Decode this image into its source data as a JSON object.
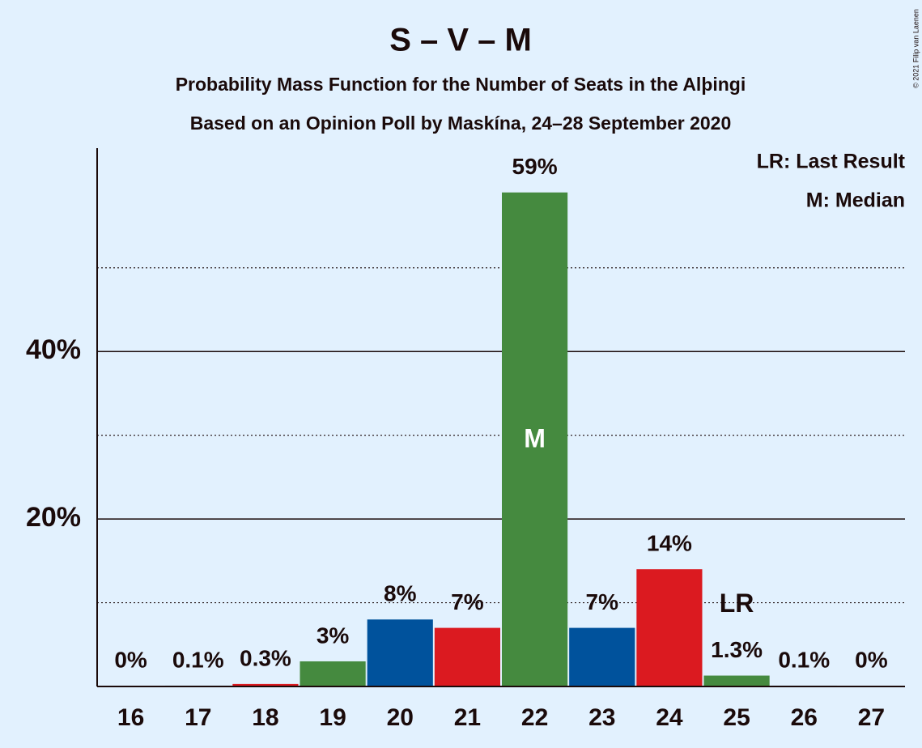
{
  "chart_data": {
    "type": "bar",
    "title": "S – V – M",
    "subtitle": "Probability Mass Function for the Number of Seats in the Alþingi",
    "subtitle2": "Based on an Opinion Poll by Maskína, 24–28 September 2020",
    "categories": [
      "16",
      "17",
      "18",
      "19",
      "20",
      "21",
      "22",
      "23",
      "24",
      "25",
      "26",
      "27"
    ],
    "values": [
      0,
      0.1,
      0.3,
      3,
      8,
      7,
      59,
      7,
      14,
      1.3,
      0.1,
      0
    ],
    "value_labels": [
      "0%",
      "0.1%",
      "0.3%",
      "3%",
      "8%",
      "7%",
      "59%",
      "7%",
      "14%",
      "1.3%",
      "0.1%",
      "0%"
    ],
    "colors": [
      "#458a3f",
      "#00529c",
      "#db1a20",
      "#458a3f",
      "#00529c",
      "#db1a20",
      "#458a3f",
      "#00529c",
      "#db1a20",
      "#458a3f",
      "#00529c",
      "#db1a20"
    ],
    "ylim": [
      0,
      64
    ],
    "yticks": [
      {
        "value": 20,
        "label": "20%"
      },
      {
        "value": 40,
        "label": "40%"
      }
    ],
    "minor_gridlines": [
      10,
      30,
      50
    ],
    "grid": true,
    "median": {
      "category": "22",
      "label": "M"
    },
    "last_result": {
      "category": "25",
      "label": "LR"
    },
    "legend": [
      "LR: Last Result",
      "M: Median"
    ],
    "copyright": "© 2021 Filip van Laenen"
  }
}
